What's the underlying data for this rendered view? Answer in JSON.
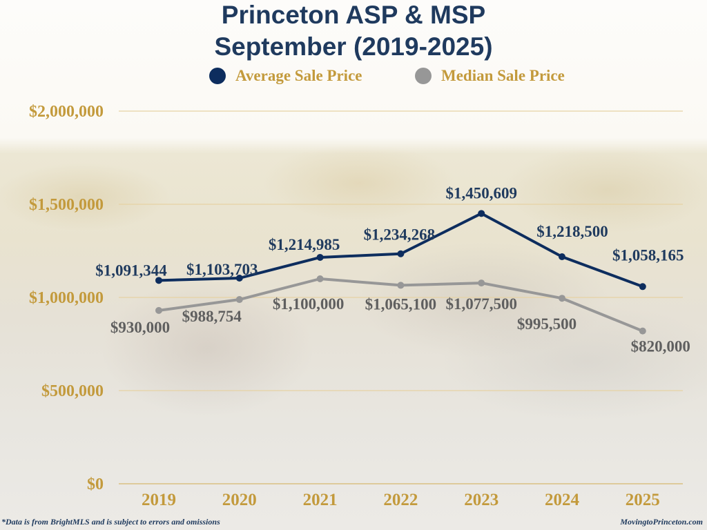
{
  "chart_data": {
    "type": "line",
    "title": "Princeton ASP & MSP",
    "subtitle": "September (2019-2025)",
    "xlabel": "",
    "ylabel": "",
    "categories": [
      "2019",
      "2020",
      "2021",
      "2022",
      "2023",
      "2024",
      "2025"
    ],
    "ylim": [
      0,
      2000000
    ],
    "yticks": [
      0,
      500000,
      1000000,
      1500000,
      2000000
    ],
    "ytick_labels": [
      "$0",
      "$500,000",
      "$1,000,000",
      "$1,500,000",
      "$2,000,000"
    ],
    "grid": true,
    "legend_position": "top",
    "series": [
      {
        "name": "Average Sale Price",
        "color": "#0d2d5e",
        "label_color": "#1f3a5e",
        "values": [
          1091344,
          1103703,
          1214985,
          1234268,
          1450609,
          1218500,
          1058165
        ],
        "labels": [
          "$1,091,344",
          "$1,103,703",
          "$1,214,985",
          "$1,234,268",
          "$1,450,609",
          "$1,218,500",
          "$1,058,165"
        ]
      },
      {
        "name": "Median Sale Price",
        "color": "#979797",
        "label_color": "#5f5f5f",
        "values": [
          930000,
          988754,
          1100000,
          1065100,
          1077500,
          995500,
          820000
        ],
        "labels": [
          "$930,000",
          "$988,754",
          "$1,100,000",
          "$1,065,100",
          "$1,077,500",
          "$995,500",
          "$820,000"
        ]
      }
    ]
  },
  "header": {
    "title_line1": "Princeton ASP & MSP",
    "title_line2": "September (2019-2025)"
  },
  "legend": {
    "items": [
      {
        "label": "Average Sale Price",
        "color": "#0d2d5e"
      },
      {
        "label": "Median Sale Price",
        "color": "#979797"
      }
    ]
  },
  "colors": {
    "axis_text": "#c39a3c",
    "gridline": "#e6d2a4",
    "title": "#1f3a5e"
  },
  "footer": {
    "note": "*Data is from BrightMLS and is subject to errors and omissions",
    "site": "MovingtoPrinceton.com"
  }
}
